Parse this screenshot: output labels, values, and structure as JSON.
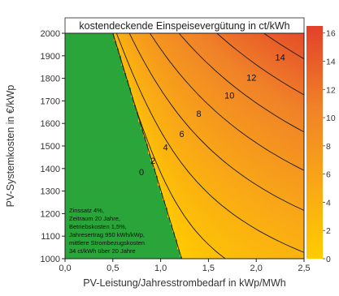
{
  "chart_data": {
    "type": "heatmap",
    "title": "kostendeckende Einspeisevergütung in ct/kWh",
    "xlabel": "PV-Leistung/Jahresstrombedarf in kWp/MWh",
    "ylabel": "PV-Systemkosten in €/kWp",
    "xlim": [
      0,
      2.5
    ],
    "ylim": [
      1000,
      2000
    ],
    "x_ticks": [
      "0,0",
      "0,5",
      "1,0",
      "1,5",
      "2,0",
      "2,5"
    ],
    "y_ticks": [
      "1000",
      "1100",
      "1200",
      "1300",
      "1400",
      "1500",
      "1600",
      "1700",
      "1800",
      "1900",
      "2000"
    ],
    "colorbar": {
      "range": [
        0,
        16.5
      ],
      "ticks": [
        "0",
        "2",
        "4",
        "6",
        "8",
        "10",
        "12",
        "14",
        "16"
      ]
    },
    "contour_levels": [
      0,
      2,
      4,
      6,
      8,
      10,
      12,
      14
    ],
    "contour_labels": [
      {
        "text": "0",
        "x": 0.8,
        "y": 1370
      },
      {
        "text": "2",
        "x": 0.92,
        "y": 1420
      },
      {
        "text": "4",
        "x": 1.05,
        "y": 1480
      },
      {
        "text": "6",
        "x": 1.22,
        "y": 1540
      },
      {
        "text": "8",
        "x": 1.4,
        "y": 1630
      },
      {
        "text": "10",
        "x": 1.72,
        "y": 1710
      },
      {
        "text": "12",
        "x": 1.95,
        "y": 1790
      },
      {
        "text": "14",
        "x": 2.25,
        "y": 1880
      }
    ],
    "note": [
      "Zinssatz 4%,",
      "Zeitraum 20 Jahre,",
      "Betriebskosten 1,5%,",
      "Jahresertrag 950 kWh/kWp,",
      "mittlere Strombezugskosten",
      "34 ct/kWh über 20 Jahre"
    ],
    "grid": false,
    "legend": "colorbar-right"
  },
  "colors": {
    "green": "#2aa53a",
    "yellow": "#ffcc00",
    "orange": "#f59020",
    "red": "#e3402a"
  }
}
